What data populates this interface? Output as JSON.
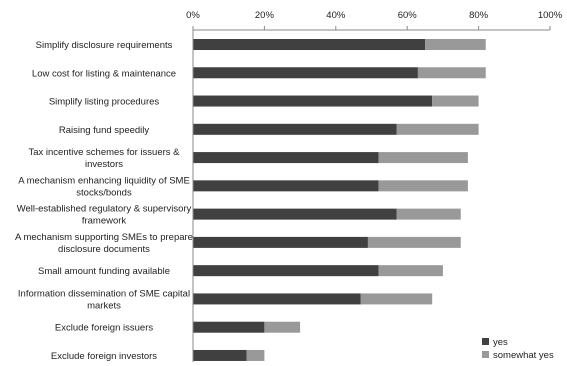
{
  "chart_data": {
    "type": "bar",
    "orientation": "horizontal",
    "stacked": true,
    "xlim": [
      0,
      100
    ],
    "x_tick_labels": [
      "0%",
      "20%",
      "40%",
      "60%",
      "80%",
      "100%"
    ],
    "x_ticks": [
      0,
      20,
      40,
      60,
      80,
      100
    ],
    "legend_position": "bottom-right",
    "grid": false,
    "categories": [
      "Simplify disclosure requirements",
      "Low cost for listing & maintenance",
      "Simplify listing procedures",
      "Raising fund speedily",
      [
        "Tax incentive schemes for issuers &",
        "investors"
      ],
      [
        "A mechanism enhancing liquidity of SME",
        "stocks/bonds"
      ],
      [
        "Well-established regulatory & supervisory",
        "framework"
      ],
      [
        "A mechanism supporting SMEs to prepare",
        "disclosure documents"
      ],
      "Small amount funding available",
      [
        "Information dissemination of SME capital",
        "markets"
      ],
      "Exclude foreign issuers",
      "Exclude foreign investors"
    ],
    "series": [
      {
        "name": "yes",
        "color": "#404040",
        "values": [
          65,
          63,
          67,
          57,
          52,
          52,
          57,
          49,
          52,
          47,
          20,
          15
        ]
      },
      {
        "name": "somewhat yes",
        "color": "#999999",
        "values": [
          17,
          19,
          13,
          23,
          25,
          25,
          18,
          26,
          18,
          20,
          10,
          5
        ]
      }
    ]
  }
}
